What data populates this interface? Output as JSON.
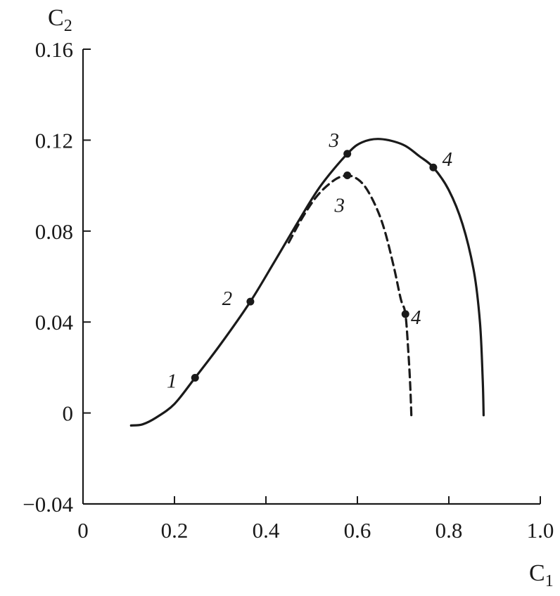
{
  "chart_data": {
    "type": "line",
    "xlabel": "C",
    "xlabel_sub": "1",
    "ylabel": "C",
    "ylabel_sub": "2",
    "xlim": [
      0,
      1.0
    ],
    "ylim": [
      -0.04,
      0.16
    ],
    "x_ticks": [
      0,
      0.2,
      0.4,
      0.6,
      0.8,
      1.0
    ],
    "x_tick_labels": [
      "0",
      "0.2",
      "0.4",
      "0.6",
      "0.8",
      "1.0"
    ],
    "y_ticks": [
      -0.04,
      0,
      0.04,
      0.08,
      0.12,
      0.16
    ],
    "y_tick_labels": [
      "−0.04",
      "0",
      "0.04",
      "0.08",
      "0.12",
      "0.16"
    ],
    "grid": false,
    "series": [
      {
        "style": "solid",
        "points": [
          [
            0.105,
            -0.0055
          ],
          [
            0.13,
            -0.005
          ],
          [
            0.16,
            -0.002
          ],
          [
            0.2,
            0.004
          ],
          [
            0.245,
            0.0155
          ],
          [
            0.3,
            0.03
          ],
          [
            0.366,
            0.049
          ],
          [
            0.42,
            0.067
          ],
          [
            0.47,
            0.084
          ],
          [
            0.52,
            0.1
          ],
          [
            0.578,
            0.114
          ],
          [
            0.61,
            0.119
          ],
          [
            0.65,
            0.1205
          ],
          [
            0.7,
            0.118
          ],
          [
            0.735,
            0.113
          ],
          [
            0.766,
            0.108
          ],
          [
            0.8,
            0.098
          ],
          [
            0.83,
            0.083
          ],
          [
            0.855,
            0.062
          ],
          [
            0.868,
            0.04
          ],
          [
            0.874,
            0.015
          ],
          [
            0.876,
            -0.001
          ]
        ],
        "markers": [
          {
            "label": "1",
            "x": 0.245,
            "y": 0.0155
          },
          {
            "label": "2",
            "x": 0.366,
            "y": 0.049
          },
          {
            "label": "3",
            "x": 0.578,
            "y": 0.114
          },
          {
            "label": "4",
            "x": 0.766,
            "y": 0.108
          }
        ]
      },
      {
        "style": "dashed",
        "points": [
          [
            0.45,
            0.075
          ],
          [
            0.48,
            0.086
          ],
          [
            0.51,
            0.095
          ],
          [
            0.54,
            0.101
          ],
          [
            0.565,
            0.104
          ],
          [
            0.59,
            0.104
          ],
          [
            0.615,
            0.1
          ],
          [
            0.64,
            0.091
          ],
          [
            0.66,
            0.08
          ],
          [
            0.68,
            0.064
          ],
          [
            0.695,
            0.05
          ],
          [
            0.705,
            0.0435
          ],
          [
            0.712,
            0.025
          ],
          [
            0.716,
            0.01
          ],
          [
            0.718,
            -0.001
          ]
        ],
        "markers": [
          {
            "label": "3",
            "x": 0.578,
            "y": 0.1045
          },
          {
            "label": "4",
            "x": 0.705,
            "y": 0.0435
          }
        ]
      }
    ]
  }
}
